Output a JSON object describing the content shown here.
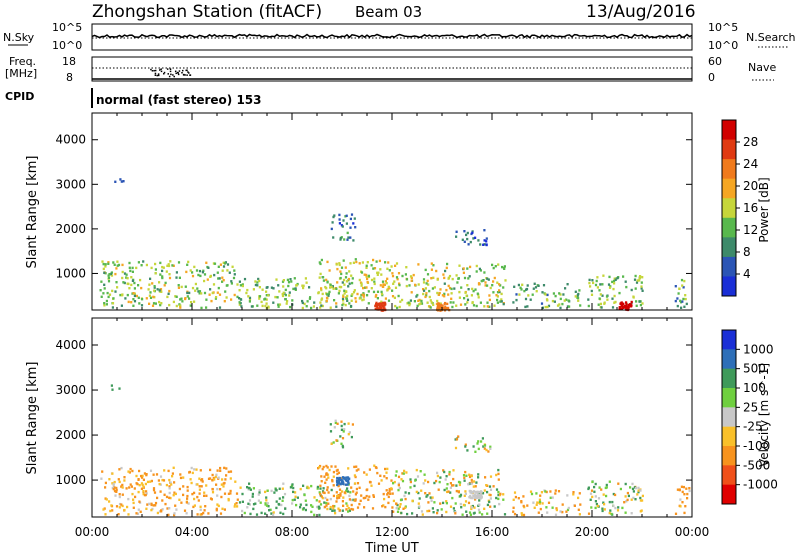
{
  "header": {
    "station": "Zhongshan Station (fitACF)",
    "beam": "Beam 03",
    "date": "13/Aug/2016"
  },
  "top_panels": {
    "nsky_label": "N.Sky",
    "nsky_ticks": [
      "10^5",
      "10^0"
    ],
    "nsearch_label": "N.Search",
    "nsearch_ticks": [
      "10^5",
      "10^0"
    ],
    "freq_label_1": "Freq.",
    "freq_label_2": "[MHz]",
    "freq_ticks": [
      "18",
      "8"
    ],
    "nave_label": "Nave",
    "nave_ticks": [
      "60",
      "0"
    ],
    "cpid_label": "CPID",
    "cpid_value": "normal (fast stereo) 153"
  },
  "colors": {
    "power_scale": [
      "#1a2fd6",
      "#2b55b5",
      "#3d8a6a",
      "#58b84d",
      "#c6d63a",
      "#f5a623",
      "#f07a1c",
      "#e03a12",
      "#d10000"
    ],
    "velocity_scale": [
      "#e00000",
      "#f0501a",
      "#f7931e",
      "#f9c02a",
      "#c8c8c8",
      "#6fcf3f",
      "#3f9a5a",
      "#2e6fb8",
      "#1a2fd6"
    ]
  },
  "chart_data": [
    {
      "type": "heatmap",
      "title": "",
      "xlabel": "Time UT",
      "ylabel": "Slant Range [km]",
      "x_ticks": [
        "00:00",
        "04:00",
        "08:00",
        "12:00",
        "16:00",
        "20:00",
        "00:00"
      ],
      "y_ticks": [
        "4000",
        "3000",
        "2000",
        "1000"
      ],
      "ylim": [
        180,
        4600
      ],
      "colorbar_label": "Power [dB]",
      "colorbar_ticks": [
        "28",
        "24",
        "20",
        "16",
        "12",
        "8",
        "4"
      ],
      "regions": [
        {
          "t0": 0.3,
          "t1": 5.8,
          "r0": 250,
          "r1": 1300,
          "v": 14
        },
        {
          "t0": 5.8,
          "t1": 10.5,
          "r0": 250,
          "r1": 950,
          "v": 13
        },
        {
          "t0": 9.0,
          "t1": 12.0,
          "r0": 350,
          "r1": 1350,
          "v": 16
        },
        {
          "t0": 12.0,
          "t1": 16.5,
          "r0": 250,
          "r1": 1250,
          "v": 15
        },
        {
          "t0": 16.8,
          "t1": 19.5,
          "r0": 250,
          "r1": 800,
          "v": 12
        },
        {
          "t0": 19.8,
          "t1": 22.0,
          "r0": 250,
          "r1": 1000,
          "v": 13
        },
        {
          "t0": 23.3,
          "t1": 23.9,
          "r0": 250,
          "r1": 900,
          "v": 10
        },
        {
          "t0": 9.5,
          "t1": 10.5,
          "r0": 1750,
          "r1": 2350,
          "v": 7
        },
        {
          "t0": 14.5,
          "t1": 15.9,
          "r0": 1650,
          "r1": 2000,
          "v": 6
        },
        {
          "t0": 0.7,
          "t1": 1.3,
          "r0": 3000,
          "r1": 3150,
          "v": 5
        }
      ],
      "hot_spots": [
        {
          "t": 11.5,
          "r": 280,
          "v": 26
        },
        {
          "t": 21.3,
          "r": 300,
          "v": 30
        },
        {
          "t": 14.0,
          "r": 280,
          "v": 24
        }
      ]
    },
    {
      "type": "heatmap",
      "title": "",
      "xlabel": "Time UT",
      "ylabel": "Slant Range [km]",
      "x_ticks": [
        "00:00",
        "04:00",
        "08:00",
        "12:00",
        "16:00",
        "20:00",
        "00:00"
      ],
      "y_ticks": [
        "4000",
        "3000",
        "2000",
        "1000"
      ],
      "ylim": [
        180,
        4600
      ],
      "colorbar_label": "Velocity [m s^-1]",
      "colorbar_ticks": [
        "1000",
        "500",
        "100",
        "25",
        "-25",
        "-100",
        "-500",
        "-1000"
      ],
      "regions": [
        {
          "t0": 0.3,
          "t1": 5.8,
          "r0": 250,
          "r1": 1300,
          "v": -150
        },
        {
          "t0": 5.8,
          "t1": 10.5,
          "r0": 250,
          "r1": 950,
          "v": 80
        },
        {
          "t0": 9.0,
          "t1": 12.0,
          "r0": 350,
          "r1": 1350,
          "v": -200
        },
        {
          "t0": 12.0,
          "t1": 16.5,
          "r0": 250,
          "r1": 1250,
          "v": 0
        },
        {
          "t0": 16.8,
          "t1": 19.5,
          "r0": 250,
          "r1": 800,
          "v": -100
        },
        {
          "t0": 19.8,
          "t1": 22.0,
          "r0": 250,
          "r1": 1000,
          "v": 40
        },
        {
          "t0": 23.3,
          "t1": 23.9,
          "r0": 250,
          "r1": 900,
          "v": -150
        },
        {
          "t0": 9.5,
          "t1": 10.5,
          "r0": 1750,
          "r1": 2350,
          "v": 0
        },
        {
          "t0": 14.5,
          "t1": 15.9,
          "r0": 1650,
          "r1": 2000,
          "v": 0
        },
        {
          "t0": 0.7,
          "t1": 1.3,
          "r0": 3000,
          "r1": 3150,
          "v": 0
        }
      ],
      "hot_spots": [
        {
          "t": 10.0,
          "r": 1000,
          "v": 1000
        },
        {
          "t": 15.3,
          "r": 700,
          "v": 0
        }
      ]
    }
  ]
}
